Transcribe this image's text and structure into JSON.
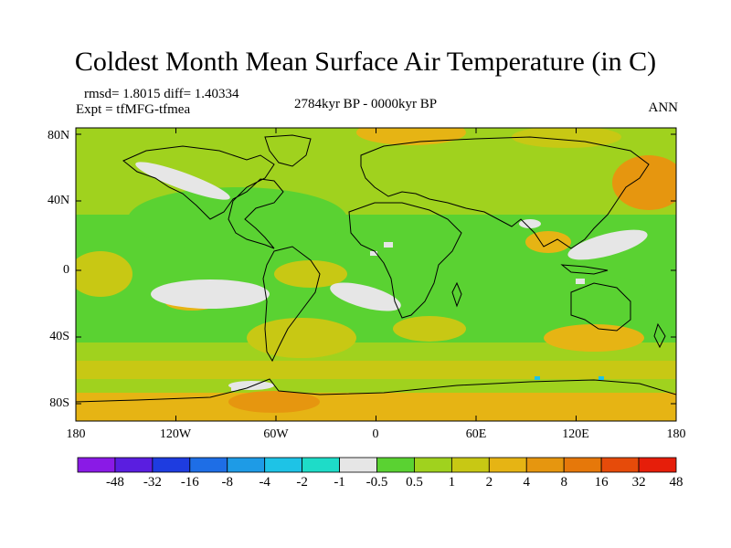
{
  "title": "Coldest Month Mean Surface Air Temperature (in C)",
  "stats": "rmsd= 1.8015 diff= 1.40334",
  "experiment": "Expt = tfMFG-tfmea",
  "period": "2784kyr BP - 0000kyr BP",
  "season": "ANN",
  "y_ticks": [
    "80N",
    "40N",
    "0",
    "40S",
    "80S"
  ],
  "x_ticks": [
    "180",
    "120W",
    "60W",
    "0",
    "60E",
    "120E",
    "180"
  ],
  "colorbar": {
    "labels": [
      "-48",
      "-32",
      "-16",
      "-8",
      "-4",
      "-2",
      "-1",
      "-0.5",
      "0.5",
      "1",
      "2",
      "4",
      "8",
      "16",
      "32",
      "48"
    ],
    "colors": [
      "#8a1ae6",
      "#5a1ee0",
      "#1e3ce0",
      "#1e6ee6",
      "#1e9be6",
      "#1ec3e6",
      "#1edcc8",
      "#e6e6e6",
      "#5ad232",
      "#a0d21e",
      "#c8c814",
      "#e6b414",
      "#e6960f",
      "#e6780a",
      "#e64b0a",
      "#e61e0a"
    ]
  },
  "colors": {
    "land_base": "#5ad232",
    "warm_1": "#a0d21e",
    "warm_2": "#c8c814",
    "warm_3": "#e6b414",
    "warm_4": "#e6960f",
    "neutral": "#e6e6e6",
    "cool": "#1ec3e6"
  }
}
